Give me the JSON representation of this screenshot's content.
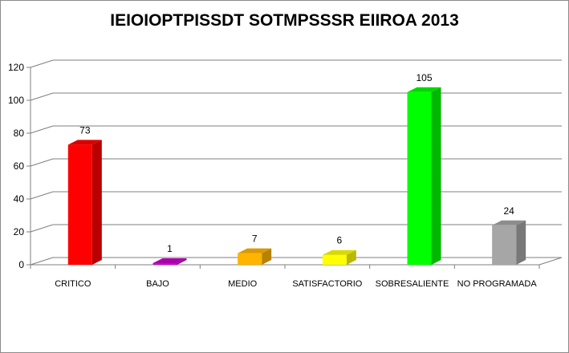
{
  "chart_data": {
    "type": "bar",
    "title": "IEIOIOPTPISSDT SOTMPSSSR EIIROA 2013",
    "categories": [
      "CRITICO",
      "BAJO",
      "MEDIO",
      "SATISFACTORIO",
      "SOBRESALIENTE",
      "NO PROGRAMADA"
    ],
    "values": [
      73,
      1,
      7,
      6,
      105,
      24
    ],
    "data_labels": [
      "73",
      "1",
      "7",
      "6",
      "105",
      "24"
    ],
    "ylim": [
      0,
      120
    ],
    "yticks": [
      "0",
      "20",
      "40",
      "60",
      "80",
      "100",
      "120"
    ],
    "xlabel": "",
    "ylabel": "",
    "grid": true,
    "style": "3d-column",
    "colors": {
      "CRITICO": "#ff0000",
      "BAJO": "#cc00cc",
      "MEDIO": "#ffb400",
      "SATISFACTORIO": "#ffff00",
      "SOBRESALIENTE": "#00ff00",
      "NO PROGRAMADA": "#a6a6a6"
    }
  }
}
